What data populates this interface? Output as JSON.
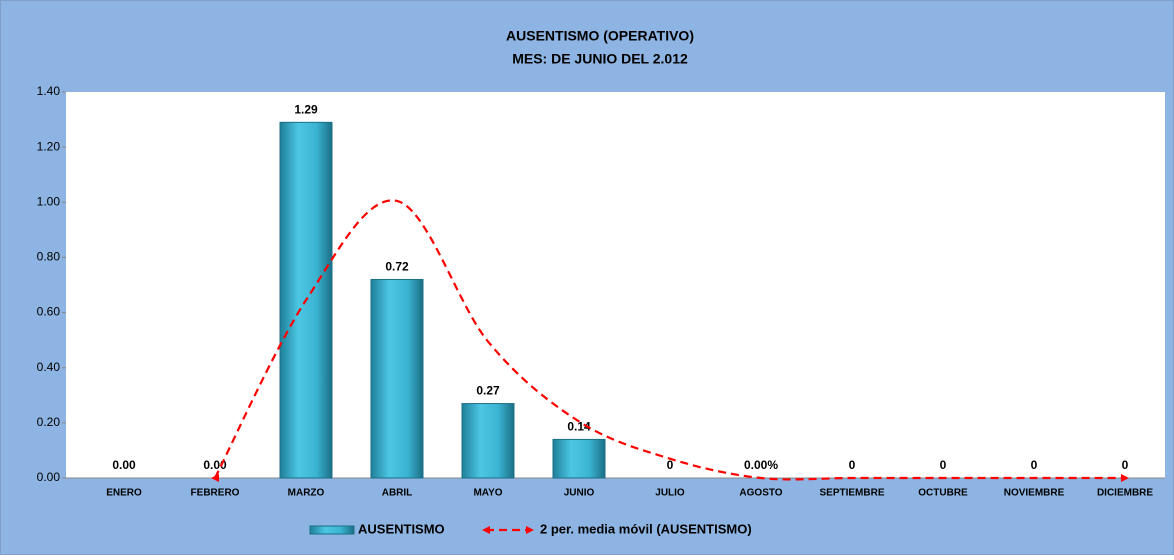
{
  "chart_data": {
    "type": "bar",
    "title": "AUSENTISMO (OPERATIVO)",
    "subtitle": "MES: DE JUNIO DEL 2.012",
    "categories": [
      "ENERO",
      "FEBRERO",
      "MARZO",
      "ABRIL",
      "MAYO",
      "JUNIO",
      "JULIO",
      "AGOSTO",
      "SEPTIEMBRE",
      "OCTUBRE",
      "NOVIEMBRE",
      "DICIEMBRE"
    ],
    "series": [
      {
        "name": "AUSENTISMO",
        "type": "bar",
        "color": "#3cb9d6",
        "values": [
          0,
          0,
          1.29,
          0.72,
          0.27,
          0.14,
          0,
          0,
          0,
          0,
          0,
          0
        ],
        "value_labels": [
          "0.00",
          "0.00",
          "1.29",
          "0.72",
          "0.27",
          "0.14",
          "0",
          "0.00%",
          "0",
          "0",
          "0",
          "0"
        ]
      },
      {
        "name": "2 per. media móvil (AUSENTISMO)",
        "type": "line",
        "color": "#ff0000",
        "values": [
          null,
          0,
          0.645,
          1.005,
          0.495,
          0.205,
          0.07,
          0,
          0,
          0,
          0,
          0
        ]
      }
    ],
    "ylim": [
      0,
      1.4
    ],
    "yticks": [
      {
        "value": 0,
        "label": "0.00"
      },
      {
        "value": 0.2,
        "label": "0.20"
      },
      {
        "value": 0.4,
        "label": "0.40"
      },
      {
        "value": 0.6,
        "label": "0.60"
      },
      {
        "value": 0.8,
        "label": "0.80"
      },
      {
        "value": 1,
        "label": "1.00"
      },
      {
        "value": 1.2,
        "label": "1.20"
      },
      {
        "value": 1.4,
        "label": "1.40"
      }
    ],
    "legend": "bottom"
  }
}
